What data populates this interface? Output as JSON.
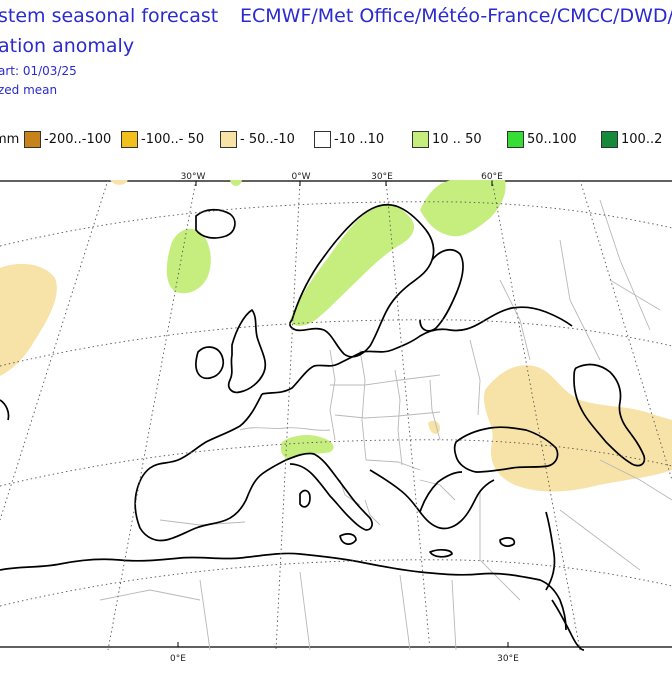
{
  "header": {
    "title_line1": "stem seasonal forecast",
    "title_line2": "ation anomaly",
    "start_line": "art: 01/03/25",
    "mean_line": "zed mean",
    "centres": "ECMWF/Met Office/Météo-France/CMCC/DWD/"
  },
  "legend": {
    "unit": "mm",
    "items": [
      {
        "label": "-200..-100",
        "color": "#c8821a"
      },
      {
        "label": "-100..- 50",
        "color": "#f2c01e"
      },
      {
        "label": "- 50..-10",
        "color": "#f7e3a8"
      },
      {
        "label": "-10 ..10",
        "color": "#ffffff"
      },
      {
        "label": "10 .. 50",
        "color": "#c5ee7e"
      },
      {
        "label": "50..100",
        "color": "#35dd35"
      },
      {
        "label": "100..2",
        "color": "#158a3a"
      }
    ]
  },
  "map": {
    "top_ticks": [
      "30°W",
      "0°W",
      "30°E",
      "60°E"
    ],
    "bottom_ticks": [
      "0°E",
      "30°E"
    ],
    "colors": {
      "dry": "#f7e3a8",
      "wet": "#c5ee7e",
      "coast": "#000000",
      "border": "#b8b8b8",
      "grid": "#555555"
    }
  }
}
